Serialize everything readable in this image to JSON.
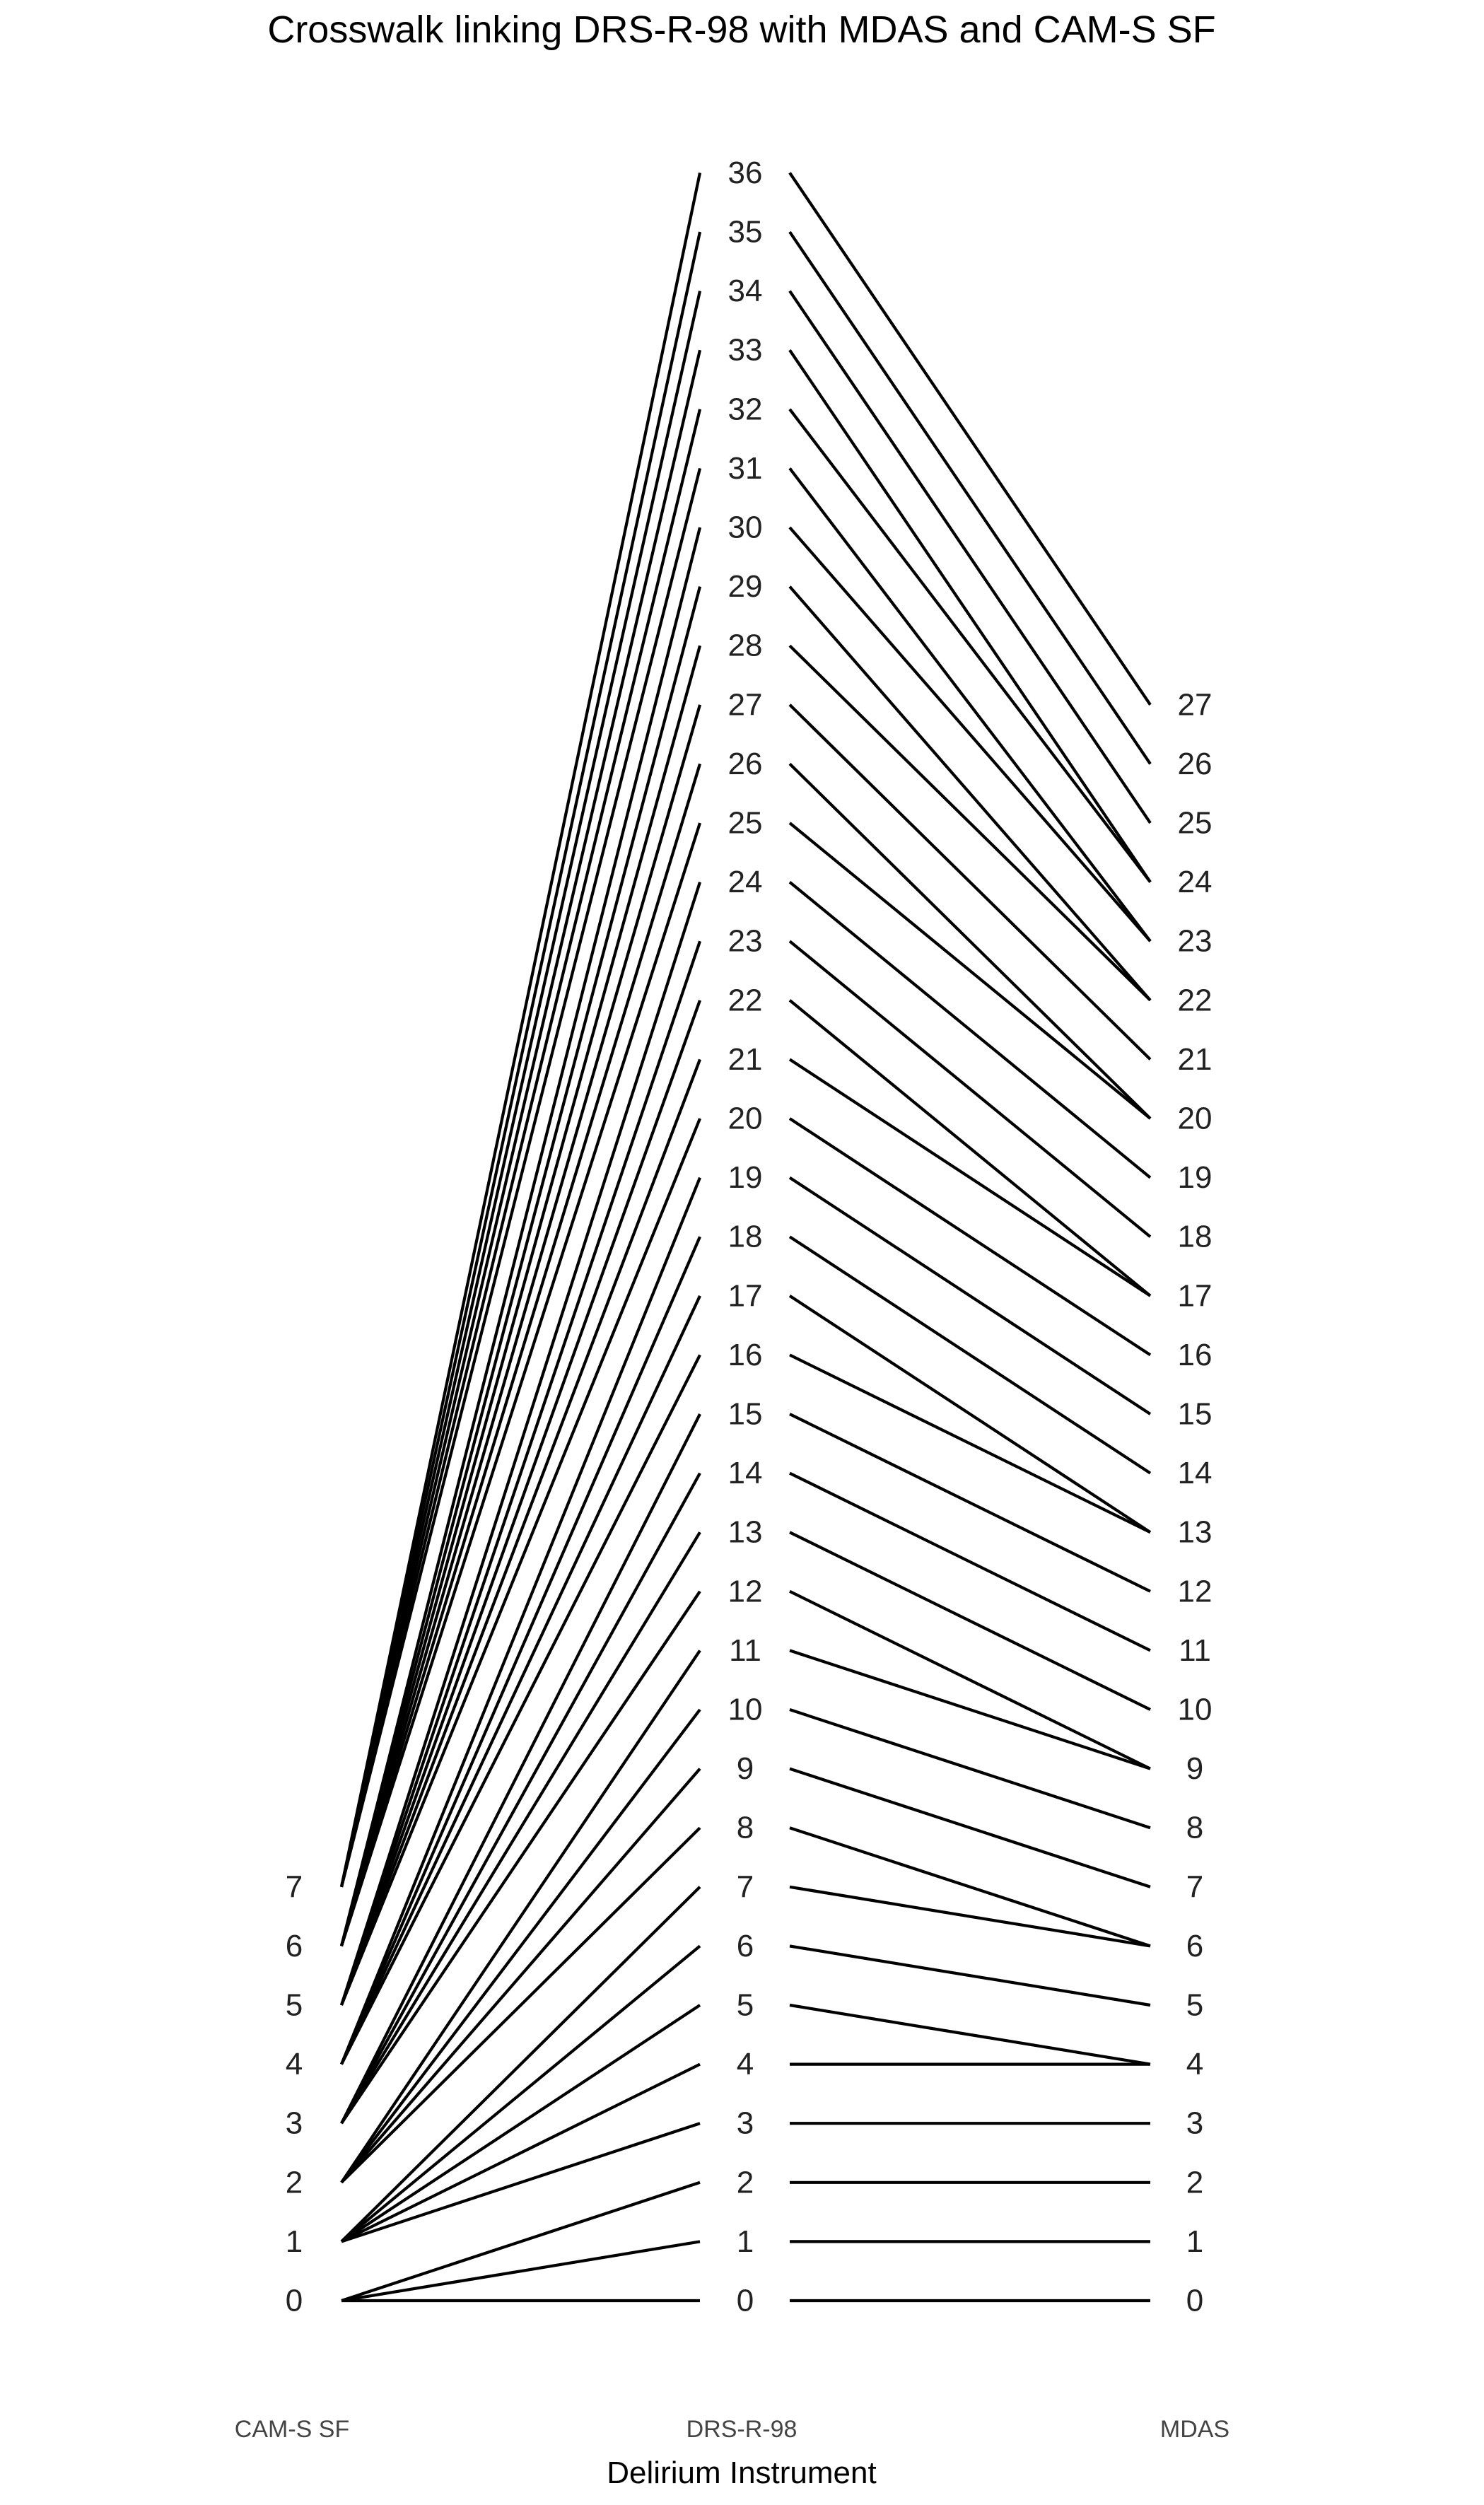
{
  "chart_data": {
    "type": "crosswalk",
    "title": "Crosswalk linking DRS-R-98 with MDAS and CAM-S SF",
    "xlabel": "Delirium Instrument",
    "columns": [
      {
        "name": "CAM-S SF",
        "ticks": [
          0,
          1,
          2,
          3,
          4,
          5,
          6,
          7
        ]
      },
      {
        "name": "DRS-R-98",
        "ticks": [
          0,
          1,
          2,
          3,
          4,
          5,
          6,
          7,
          8,
          9,
          10,
          11,
          12,
          13,
          14,
          15,
          16,
          17,
          18,
          19,
          20,
          21,
          22,
          23,
          24,
          25,
          26,
          27,
          28,
          29,
          30,
          31,
          32,
          33,
          34,
          35,
          36
        ]
      },
      {
        "name": "MDAS",
        "ticks": [
          0,
          1,
          2,
          3,
          4,
          5,
          6,
          7,
          8,
          9,
          10,
          11,
          12,
          13,
          14,
          15,
          16,
          17,
          18,
          19,
          20,
          21,
          22,
          23,
          24,
          25,
          26,
          27
        ]
      }
    ],
    "drs_to_cams": [
      {
        "drs": 0,
        "cams": 0
      },
      {
        "drs": 1,
        "cams": 0
      },
      {
        "drs": 2,
        "cams": 0
      },
      {
        "drs": 3,
        "cams": 1
      },
      {
        "drs": 4,
        "cams": 1
      },
      {
        "drs": 5,
        "cams": 1
      },
      {
        "drs": 6,
        "cams": 1
      },
      {
        "drs": 7,
        "cams": 1
      },
      {
        "drs": 8,
        "cams": 2
      },
      {
        "drs": 9,
        "cams": 2
      },
      {
        "drs": 10,
        "cams": 2
      },
      {
        "drs": 11,
        "cams": 2
      },
      {
        "drs": 12,
        "cams": 3
      },
      {
        "drs": 13,
        "cams": 3
      },
      {
        "drs": 14,
        "cams": 3
      },
      {
        "drs": 15,
        "cams": 3
      },
      {
        "drs": 16,
        "cams": 4
      },
      {
        "drs": 17,
        "cams": 4
      },
      {
        "drs": 18,
        "cams": 4
      },
      {
        "drs": 19,
        "cams": 4
      },
      {
        "drs": 20,
        "cams": 5
      },
      {
        "drs": 21,
        "cams": 5
      },
      {
        "drs": 22,
        "cams": 5
      },
      {
        "drs": 23,
        "cams": 5
      },
      {
        "drs": 24,
        "cams": 5
      },
      {
        "drs": 25,
        "cams": 6
      },
      {
        "drs": 26,
        "cams": 6
      },
      {
        "drs": 27,
        "cams": 6
      },
      {
        "drs": 28,
        "cams": 6
      },
      {
        "drs": 29,
        "cams": 6
      },
      {
        "drs": 30,
        "cams": 6
      },
      {
        "drs": 31,
        "cams": 7
      },
      {
        "drs": 32,
        "cams": 7
      },
      {
        "drs": 33,
        "cams": 7
      },
      {
        "drs": 34,
        "cams": 7
      },
      {
        "drs": 35,
        "cams": 7
      },
      {
        "drs": 36,
        "cams": 7
      }
    ],
    "drs_to_mdas": [
      {
        "drs": 0,
        "mdas": 0
      },
      {
        "drs": 1,
        "mdas": 1
      },
      {
        "drs": 2,
        "mdas": 2
      },
      {
        "drs": 3,
        "mdas": 3
      },
      {
        "drs": 4,
        "mdas": 4
      },
      {
        "drs": 5,
        "mdas": 4
      },
      {
        "drs": 6,
        "mdas": 5
      },
      {
        "drs": 7,
        "mdas": 6
      },
      {
        "drs": 8,
        "mdas": 6
      },
      {
        "drs": 9,
        "mdas": 7
      },
      {
        "drs": 10,
        "mdas": 8
      },
      {
        "drs": 11,
        "mdas": 9
      },
      {
        "drs": 12,
        "mdas": 9
      },
      {
        "drs": 13,
        "mdas": 10
      },
      {
        "drs": 14,
        "mdas": 11
      },
      {
        "drs": 15,
        "mdas": 12
      },
      {
        "drs": 16,
        "mdas": 13
      },
      {
        "drs": 17,
        "mdas": 13
      },
      {
        "drs": 18,
        "mdas": 14
      },
      {
        "drs": 19,
        "mdas": 15
      },
      {
        "drs": 20,
        "mdas": 16
      },
      {
        "drs": 21,
        "mdas": 17
      },
      {
        "drs": 22,
        "mdas": 17
      },
      {
        "drs": 23,
        "mdas": 18
      },
      {
        "drs": 24,
        "mdas": 19
      },
      {
        "drs": 25,
        "mdas": 20
      },
      {
        "drs": 26,
        "mdas": 20
      },
      {
        "drs": 27,
        "mdas": 21
      },
      {
        "drs": 28,
        "mdas": 22
      },
      {
        "drs": 29,
        "mdas": 22
      },
      {
        "drs": 30,
        "mdas": 23
      },
      {
        "drs": 31,
        "mdas": 23
      },
      {
        "drs": 32,
        "mdas": 24
      },
      {
        "drs": 33,
        "mdas": 24
      },
      {
        "drs": 34,
        "mdas": 25
      },
      {
        "drs": 35,
        "mdas": 26
      },
      {
        "drs": 36,
        "mdas": 27
      }
    ],
    "grid": false,
    "legend": "none"
  }
}
